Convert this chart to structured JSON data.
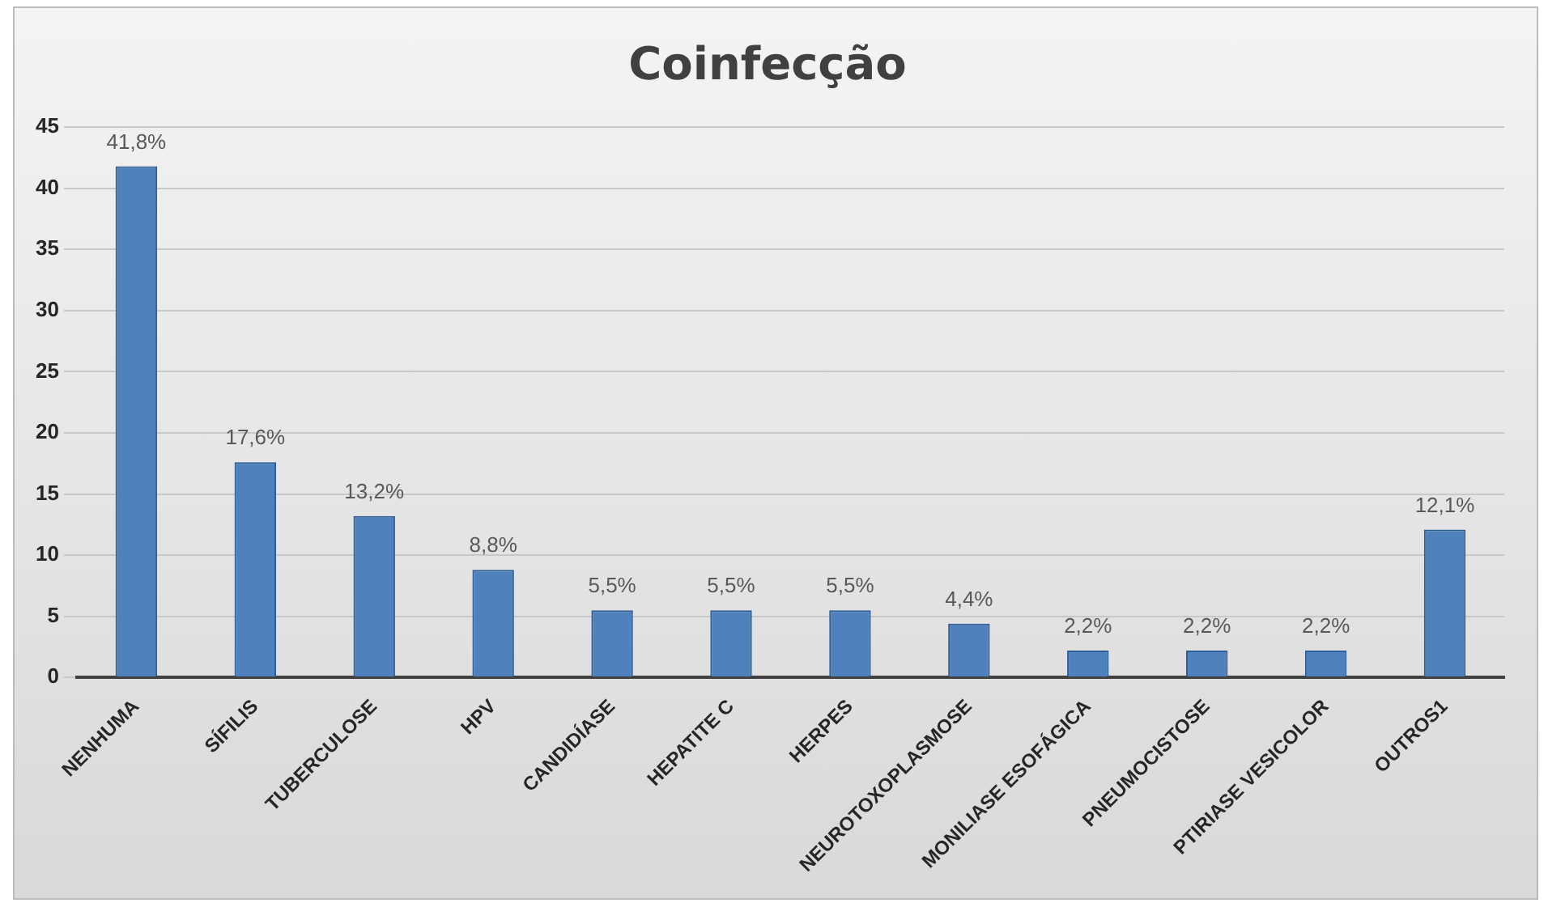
{
  "chart_data": {
    "type": "bar",
    "title": "Coinfecção",
    "categories": [
      "NENHUMA",
      "SÍFILIS",
      "TUBERCULOSE",
      "HPV",
      "CANDIDÍASE",
      "HEPATITE C",
      "HERPES",
      "NEUROTOXOPLASMOSE",
      "MONILIASE ESOFÁGICA",
      "PNEUMOCISTOSE",
      "PTIRIASE VESICOLOR",
      "OUTROS1"
    ],
    "values": [
      41.8,
      17.6,
      13.2,
      8.8,
      5.5,
      5.5,
      5.5,
      4.4,
      2.2,
      2.2,
      2.2,
      12.1
    ],
    "value_labels": [
      "41,8%",
      "17,6%",
      "13,2%",
      "8,8%",
      "5,5%",
      "5,5%",
      "5,5%",
      "4,4%",
      "2,2%",
      "2,2%",
      "2,2%",
      "12,1%"
    ],
    "color": "#4f81bd",
    "ylim": [
      0,
      45
    ],
    "yticks": [
      0,
      5,
      10,
      15,
      20,
      25,
      30,
      35,
      40,
      45
    ],
    "grid": "y"
  }
}
